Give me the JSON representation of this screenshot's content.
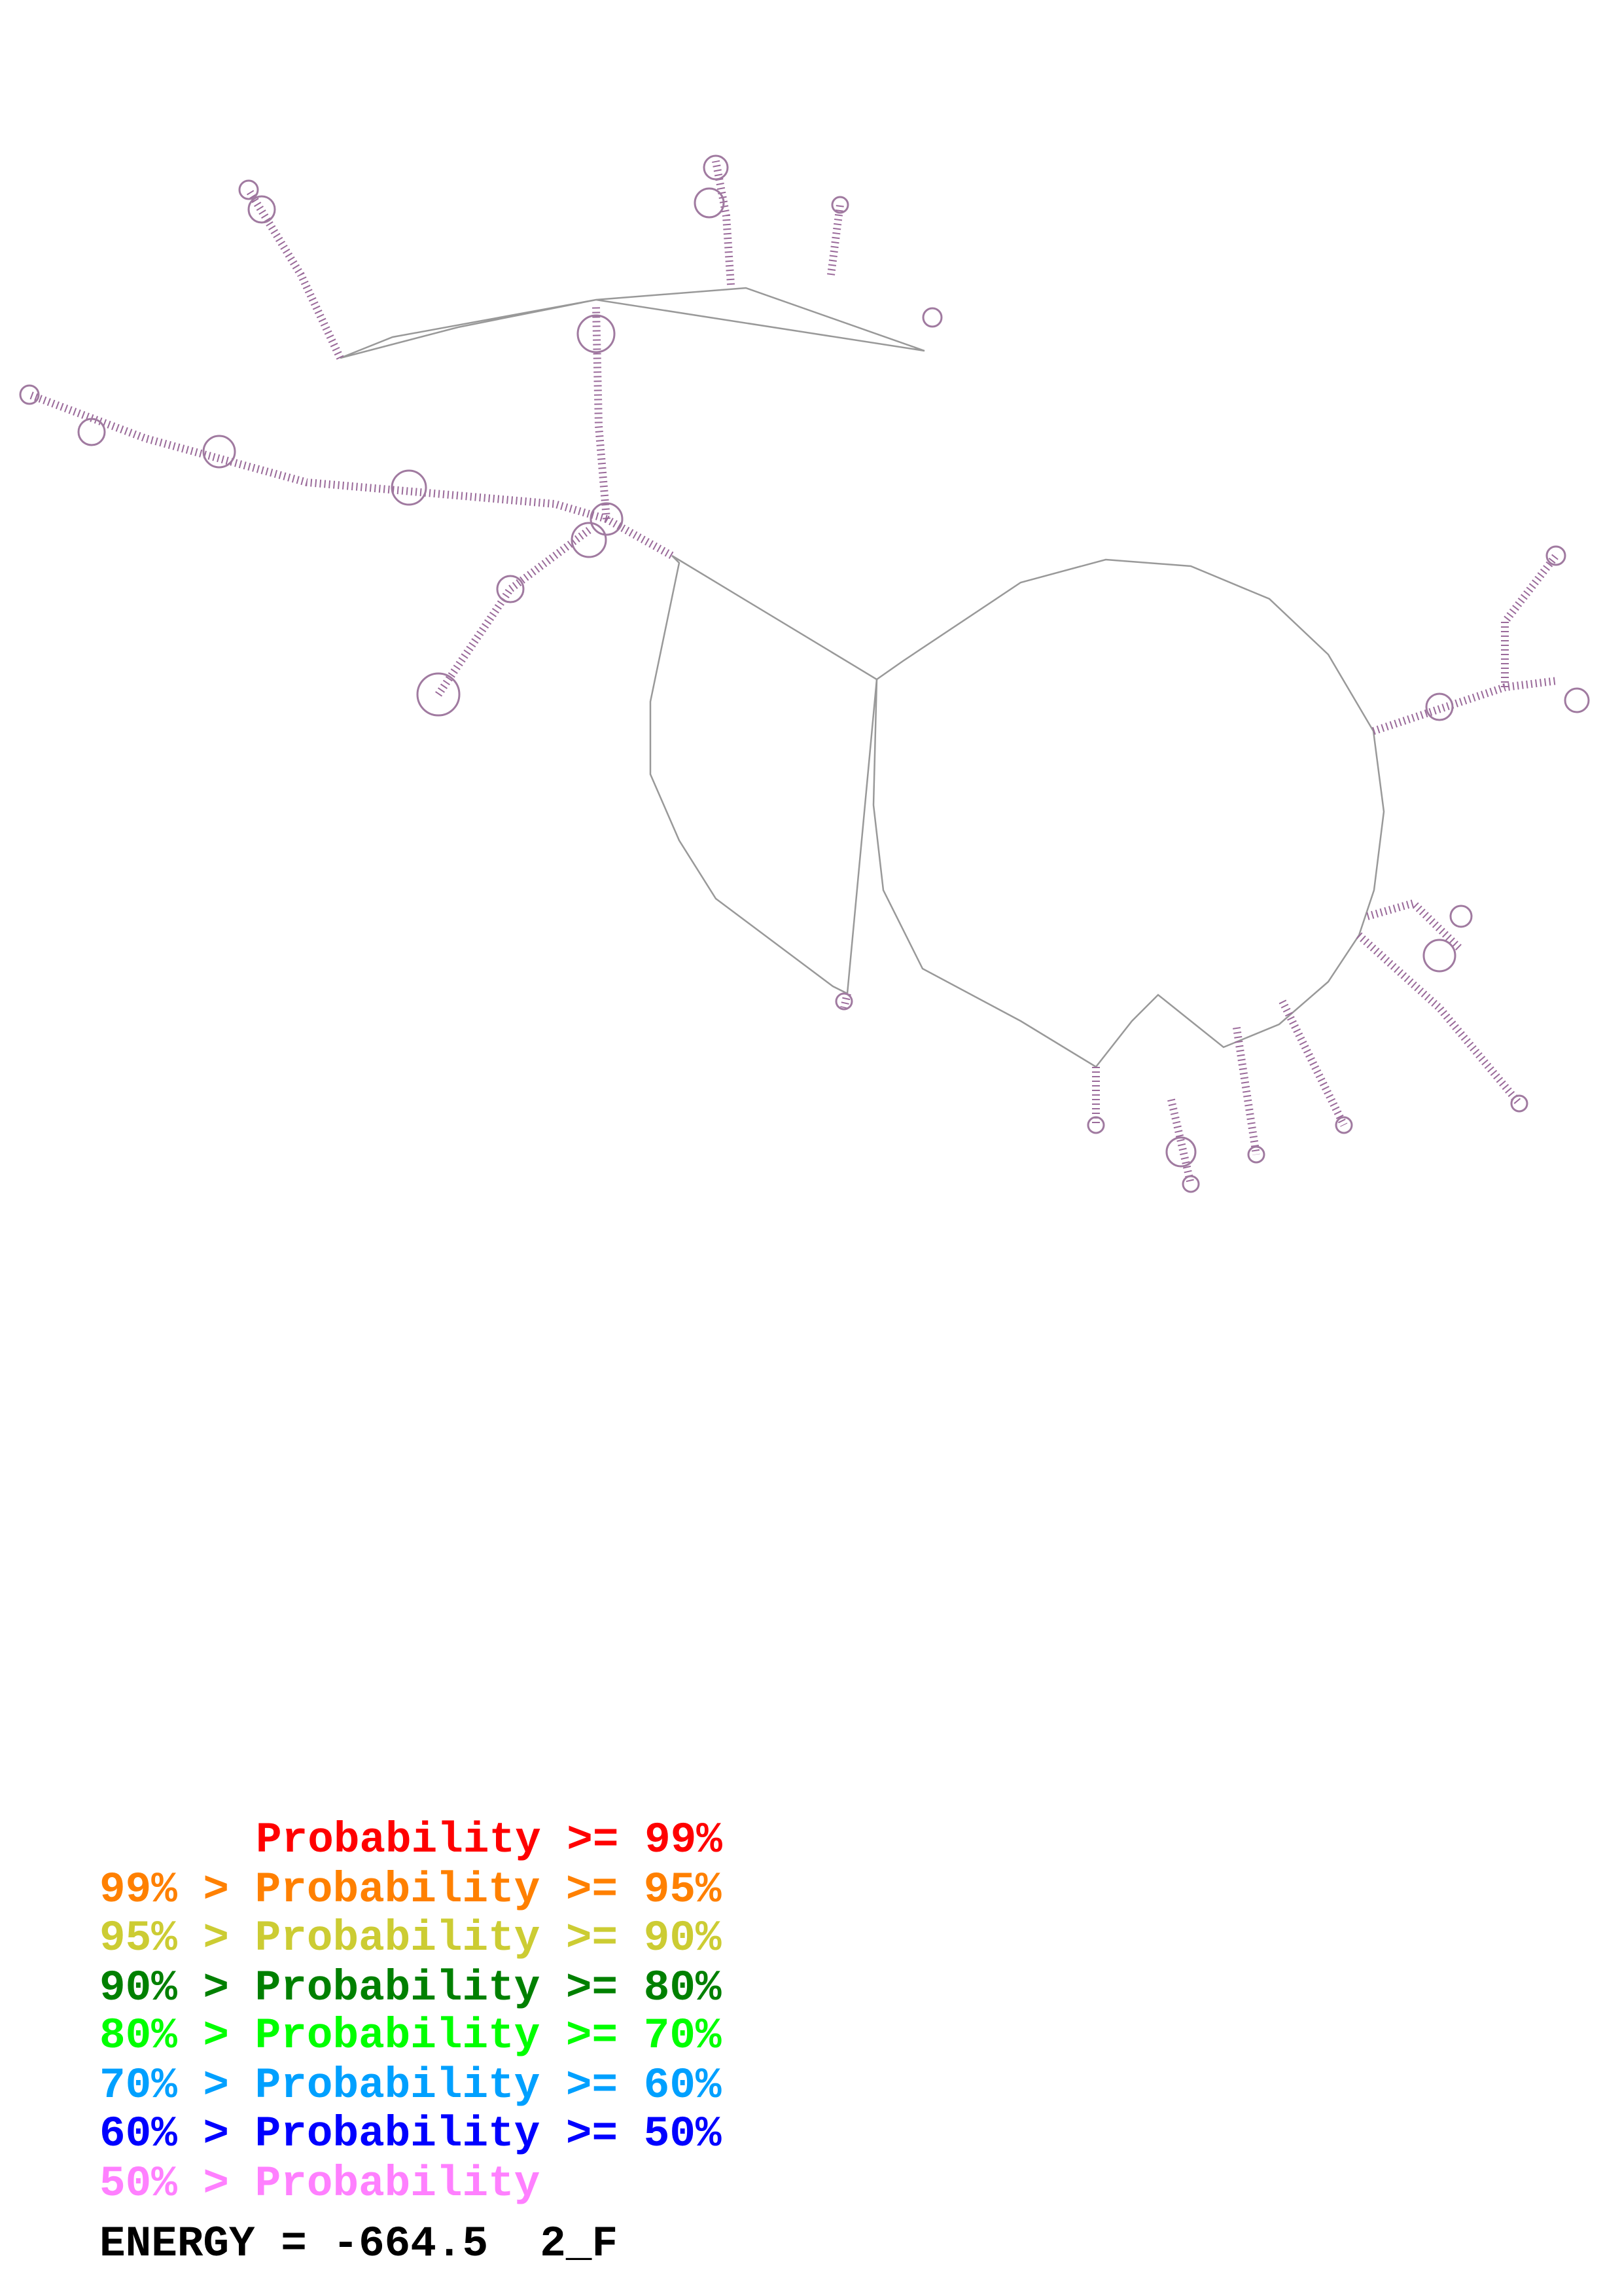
{
  "legend": [
    {
      "text": "Probability >= 99%"
    },
    {
      "text": "99% > Probability >= 95%"
    },
    {
      "text": "95% > Probability >= 90%"
    },
    {
      "text": "90% > Probability >= 80%"
    },
    {
      "text": "80% > Probability >= 70%"
    },
    {
      "text": "70% > Probability >= 60%"
    },
    {
      "text": "60% > Probability >= 50%"
    },
    {
      "text": "50% > Probability"
    }
  ],
  "energy": "ENERGY = -664.5  2_F"
}
